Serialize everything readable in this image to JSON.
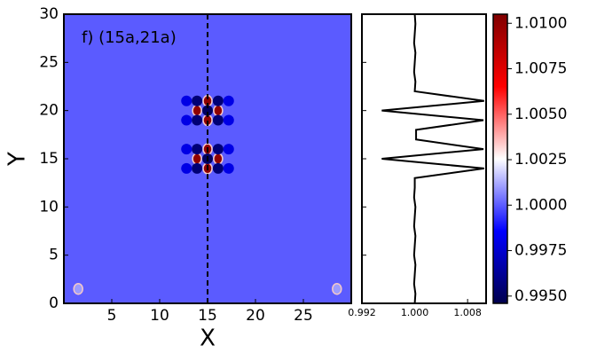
{
  "chart_data": [
    {
      "type": "heatmap",
      "annotation": "f) (15a,21a)",
      "xlabel": "X",
      "ylabel": "Y",
      "xlim": [
        0,
        30
      ],
      "xticks": [
        5,
        10,
        15,
        20,
        25
      ],
      "ylim": [
        0,
        30
      ],
      "yticks": [
        0,
        5,
        10,
        15,
        20,
        25,
        30
      ],
      "background": 1.0,
      "cut_x": 15,
      "spots": {
        "x": [
          15,
          13.9,
          16.1,
          15,
          15,
          13.9,
          16.1,
          13.9,
          16.1,
          12.8,
          17.2,
          12.8,
          17.2,
          15,
          13.9,
          16.1,
          15,
          15,
          13.9,
          16.1,
          13.9,
          16.1,
          12.8,
          17.2,
          12.8,
          17.2,
          1.5,
          28.5
        ],
        "y": [
          21,
          20,
          20,
          19,
          20,
          21,
          21,
          19,
          19,
          21,
          21,
          19,
          19,
          16,
          15,
          15,
          14,
          15,
          16,
          16,
          14,
          14,
          16,
          16,
          14,
          14,
          1.5,
          1.5
        ],
        "values": [
          1.01,
          1.01,
          1.01,
          1.01,
          0.995,
          0.9955,
          0.9955,
          0.9955,
          0.9955,
          0.998,
          0.998,
          0.998,
          0.998,
          1.01,
          1.01,
          1.01,
          1.01,
          0.995,
          0.9955,
          0.9955,
          0.9955,
          0.9955,
          0.998,
          0.998,
          0.998,
          0.998,
          1.001,
          1.001
        ]
      }
    },
    {
      "type": "line",
      "color": "#000000",
      "xlim": [
        0.992,
        1.0108
      ],
      "xticks": [
        0.992,
        {
          "value": 1.0,
          "label": "1.000"
        },
        1.008
      ],
      "ylim": [
        0,
        30
      ],
      "yticks": [
        0,
        5,
        10,
        15,
        20,
        25,
        30
      ],
      "y": [
        0,
        1,
        2,
        3,
        4,
        5,
        6,
        7,
        8,
        9,
        10,
        11,
        12,
        13,
        14,
        15,
        16,
        17,
        18,
        19,
        20,
        21,
        22,
        23,
        24,
        25,
        26,
        27,
        28,
        29,
        30
      ],
      "values": [
        1.0,
        1.0001,
        0.9999,
        1.0,
        1.0001,
        0.9999,
        1.0,
        1.0001,
        0.9999,
        1.0,
        1.0001,
        0.9999,
        1.0,
        1.0,
        1.0105,
        0.995,
        1.0104,
        1.0002,
        1.0002,
        1.0104,
        0.995,
        1.0105,
        1.0,
        1.0001,
        0.9999,
        1.0,
        1.0001,
        0.9999,
        1.0,
        1.0001,
        1.0
      ]
    },
    {
      "type": "colorbar",
      "colormap": "seismic",
      "clim": [
        0.9946,
        1.0105
      ],
      "ticks": [
        {
          "value": 0.995,
          "label": "0.9950"
        },
        0.9975,
        {
          "value": 1.0,
          "label": "1.0000"
        },
        1.0025,
        {
          "value": 1.005,
          "label": "1.0050"
        },
        1.0075,
        {
          "value": 1.01,
          "label": "1.0100"
        }
      ]
    }
  ]
}
